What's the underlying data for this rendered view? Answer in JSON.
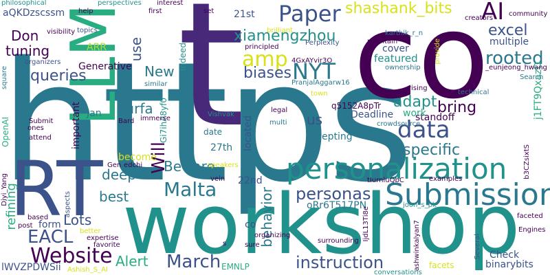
{
  "palette": {
    "dark_purple": "#440154",
    "indigo": "#3b528b",
    "teal": "#21918c",
    "sea_green": "#2a788e",
    "green": "#5ec962",
    "emerald": "#27ad81",
    "yellow": "#d8e219",
    "lime": "#addc30"
  },
  "words": {
    "https": "https",
    "co": "co",
    "t": "t",
    "workshop": "workshop",
    "rt": "RT",
    "llm": "LLM",
    "personalization": "personalization",
    "submission": "Submission",
    "paper": "Paper",
    "ai": "AI",
    "data": "data",
    "nyt": "NYT",
    "amp": "amp",
    "malta": "Malta",
    "website": "Website",
    "march": "March",
    "eacl": "EACL",
    "personas": "personas",
    "instruction": "instruction",
    "shashank_bits": "shashank_bits",
    "xiamengzhou": "xiamengzhou",
    "excel": "excel",
    "rooted": "rooted",
    "biases": "biases",
    "queries": "queries",
    "tuning": "tuning",
    "don": "Don",
    "specific": "specific",
    "bring": "bring",
    "adapt": "adapt",
    "best": "best",
    "deep": "deep",
    "lots": "Lots",
    "beware": "Beware",
    "alert": "Alert",
    "behavior": "behavior",
    "will": "Will",
    "new": "New",
    "use": "use",
    "refining": "refining",
    "us": "us",
    "surfa": "surfa",
    "arr": "ARR",
    "generative": "Generative",
    "featured": "featured",
    "cover": "cover",
    "multiple": "multiple",
    "deadline": "Deadline",
    "standoff": "standoff",
    "accepting": "accepting",
    "work": "work",
    "check": "Check",
    "binarybits": "binarybits",
    "facets": "facets",
    "orr6t517pn": "oRr6T517PN",
    "aqkdzscssm": "aQKDzscssm",
    "j1ft9qxazd": "j1FT9QxazD",
    "q5152a8ptr": "q5152A8pTr",
    "gi7iha8yf0": "Gi7ihA8yf0",
    "lwvzpdwsii": "lWVZPDWSii",
    "b3czsixtts": "b3CZsixtS",
    "ijdl13ti8e": "IjdL13Ti8e",
    "num_27th": "27th",
    "num_22nd": "22nd",
    "num_21st": "21st",
    "jan": "Jan",
    "become": "become",
    "located": "located",
    "form": "form",
    "important": "important",
    "openai": "OpenAI",
    "date": "date",
    "co_small": "co",
    "emnlp": "EMNLP",
    "indeed": "Indeed",
    "philosophical": "philosophical",
    "visibility": "visibility",
    "help": "help",
    "perspectives": "perspectives",
    "interest": "interest",
    "set": "set",
    "first": "first",
    "topics": "topics",
    "brilliant": "brilliant",
    "perplexity": "Perplexity",
    "karthik_r_n": "karthik_r_n",
    "community": "community",
    "creators": "creators",
    "maintain": "maintain",
    "provide": "provide",
    "principled": "principled",
    "gxavvir30": "4GxAYvir3O",
    "organizers": "organizers",
    "eunjeong_hwang": "_eunjeong_hwang",
    "ownership": "ownership",
    "square": "square",
    "pranjalaggarw16": "PranjalAggarw16",
    "similar": "similar",
    "search": "Search",
    "rising": "rising",
    "technical": "technical",
    "town": "town",
    "vishvak": "Vishvak",
    "legal": "legal",
    "bard": "Bard",
    "immerse": "immerse",
    "multi": "multi",
    "crowdsource": "crowdsource",
    "submit": "Submit",
    "ones": "ones",
    "attend": "attend",
    "gen": "Gen",
    "edchi": "edchi",
    "speakers": "speakers",
    "vein": "vein",
    "diyi_yang": "Diyi_Yang",
    "based": "based",
    "aspects": "aspects",
    "organizing": "organizing",
    "surrounding": "surrounding",
    "post": "post",
    "better": "better",
    "expertise": "expertise",
    "favorite": "favorite",
    "s": "s",
    "sure": "sure",
    "conversations": "conversations",
    "ashwinkalyan7": "ashwinkalyan7",
    "several": "Several",
    "engines": "Engines",
    "faceted": "faceted",
    "examples": "examples",
    "joon_s_pk": "joon_s_pk",
    "tiurnluqbc": "tIurnluQbC",
    "ashish_s_ai": "Ashish_S_AI"
  }
}
